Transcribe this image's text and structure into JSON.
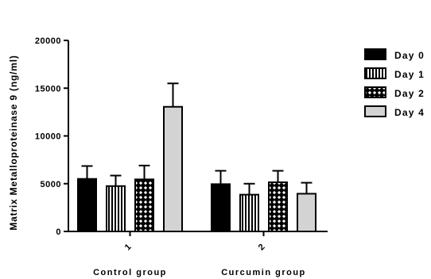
{
  "chart_data": {
    "type": "bar",
    "ylabel": "Matrix Metalloproteinase 9 (ng/ml)",
    "ylim": [
      0,
      20000
    ],
    "yticks": [
      0,
      5000,
      10000,
      15000,
      20000
    ],
    "ytick_labels": [
      "0",
      "5000",
      "10000",
      "15000",
      "20000"
    ],
    "categories": [
      "1",
      "2"
    ],
    "group_labels": [
      "Control group",
      "Curcumin group"
    ],
    "grid": false,
    "legend_position": "right",
    "series": [
      {
        "name": "Day 0",
        "fill": "solid-black",
        "values": [
          5500,
          4950
        ],
        "errors": [
          1350,
          1400
        ]
      },
      {
        "name": "Day 1",
        "fill": "vertical-stripes",
        "values": [
          4750,
          3850
        ],
        "errors": [
          1100,
          1150
        ]
      },
      {
        "name": "Day 2",
        "fill": "checker",
        "values": [
          5450,
          5150
        ],
        "errors": [
          1450,
          1200
        ]
      },
      {
        "name": "Day 4",
        "fill": "light-gray",
        "values": [
          13050,
          3950
        ],
        "errors": [
          2450,
          1150
        ]
      }
    ]
  }
}
